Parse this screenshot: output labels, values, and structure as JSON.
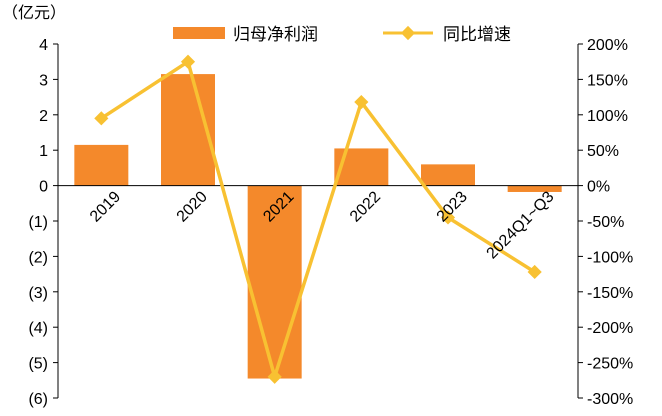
{
  "chart_data": {
    "type": "bar+line",
    "categories": [
      "2019",
      "2020",
      "2021",
      "2022",
      "2023",
      "2024Q1~Q3"
    ],
    "series": [
      {
        "name": "归母净利润",
        "type": "bar",
        "axis": "left",
        "color": "#F4892B",
        "values": [
          1.15,
          3.15,
          -5.45,
          1.05,
          0.6,
          -0.18
        ]
      },
      {
        "name": "同比增速",
        "type": "line",
        "axis": "right",
        "color": "#F8C132",
        "values": [
          95,
          175,
          -270,
          118,
          -45,
          -122
        ]
      }
    ],
    "left_axis": {
      "unit_label": "（亿元）",
      "ylim": [
        -6,
        4
      ],
      "ticks": [
        4,
        3,
        2,
        1,
        0,
        -1,
        -2,
        -3,
        -4,
        -5,
        -6
      ],
      "tick_labels": [
        "4",
        "3",
        "2",
        "1",
        "0",
        "(1)",
        "(2)",
        "(3)",
        "(4)",
        "(5)",
        "(6)"
      ]
    },
    "right_axis": {
      "ylim": [
        -300,
        200
      ],
      "ticks": [
        200,
        150,
        100,
        50,
        0,
        -50,
        -100,
        -150,
        -200,
        -250,
        -300
      ],
      "tick_labels": [
        "200%",
        "150%",
        "100%",
        "50%",
        "0%",
        "-50%",
        "-100%",
        "-150%",
        "-200%",
        "-250%",
        "-300%"
      ]
    },
    "legend": {
      "position": "top",
      "entries": [
        "归母净利润",
        "同比增速"
      ]
    },
    "grid": false
  }
}
